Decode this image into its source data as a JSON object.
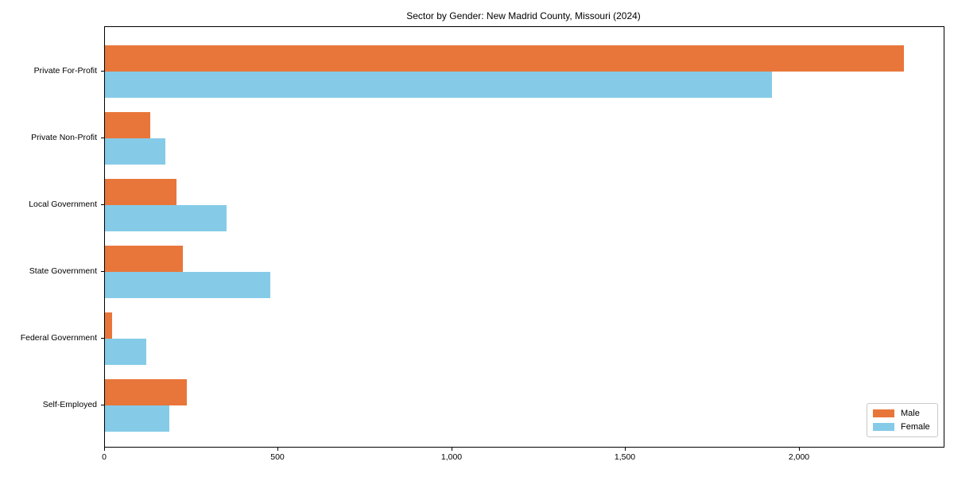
{
  "title": "Sector by Gender: New Madrid County, Missouri (2024)",
  "legend": {
    "items": [
      {
        "label": "Male",
        "color": "#e8763a"
      },
      {
        "label": "Female",
        "color": "#85cbe8"
      }
    ]
  },
  "chart_data": {
    "type": "bar",
    "orientation": "horizontal",
    "title": "Sector by Gender: New Madrid County, Missouri (2024)",
    "categories": [
      "Private For-Profit",
      "Private Non-Profit",
      "Local Government",
      "State Government",
      "Federal Government",
      "Self-Employed"
    ],
    "series": [
      {
        "name": "Male",
        "color": "#e8763a",
        "values": [
          2300,
          130,
          205,
          225,
          20,
          235
        ]
      },
      {
        "name": "Female",
        "color": "#85cbe8",
        "values": [
          1920,
          175,
          350,
          475,
          120,
          185
        ]
      }
    ],
    "xlabel": "",
    "ylabel": "",
    "xlim": [
      0,
      2415
    ],
    "xticks": [
      0,
      500,
      1000,
      1500,
      2000
    ],
    "xtick_labels": [
      "0",
      "500",
      "1,000",
      "1,500",
      "2,000"
    ],
    "grid": false,
    "legend_position": "lower right",
    "bar_group_gap_note": "Male bar above Female bar for each category"
  }
}
